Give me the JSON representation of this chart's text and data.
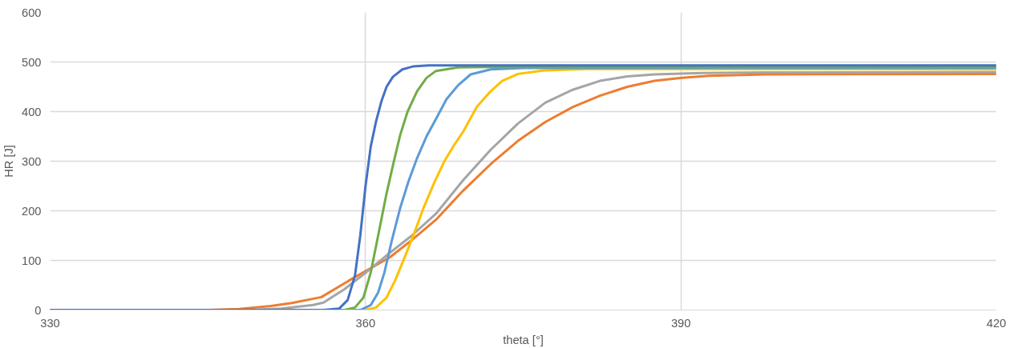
{
  "chart_data": {
    "type": "line",
    "xlabel": "theta [°]",
    "ylabel": "HR [J]",
    "xlim": [
      330,
      420
    ],
    "xticks": [
      330,
      360,
      390,
      420
    ],
    "ylim": [
      0,
      600
    ],
    "yticks": [
      0,
      100,
      200,
      300,
      400,
      500,
      600
    ],
    "grid": true,
    "series": [
      {
        "color": "#ed7d31",
        "x": [
          330,
          345,
          348,
          351,
          353,
          355.8,
          358.4,
          362.3,
          364.4,
          366.7,
          369.3,
          371.9,
          374.5,
          377.1,
          379.7,
          382.3,
          384.9,
          387.5,
          390.1,
          392.7,
          398,
          420
        ],
        "values": [
          0,
          0,
          2,
          8,
          14,
          26,
          59,
          106,
          141,
          182,
          241,
          294,
          341,
          379,
          409,
          432,
          450,
          462,
          468,
          472,
          475,
          476
        ]
      },
      {
        "color": "#a5a5a5",
        "x": [
          330,
          349,
          352,
          355,
          356,
          358,
          360,
          362.3,
          364.4,
          366.7,
          369.3,
          371.9,
          374.5,
          377.1,
          379.7,
          382.3,
          384.9,
          387.5,
          392,
          398,
          420
        ],
        "values": [
          0,
          0,
          3,
          10,
          15,
          42,
          75,
          115,
          150,
          194,
          262,
          323,
          376,
          418,
          444,
          462,
          471,
          475,
          478,
          479,
          480
        ]
      },
      {
        "color": "#ffc000",
        "x": [
          330,
          360,
          361,
          362,
          362.8,
          363.7,
          364.6,
          365.5,
          366.5,
          367.5,
          368.5,
          369.3,
          370.6,
          371.9,
          373,
          374.5,
          377,
          381,
          420
        ],
        "values": [
          0,
          0,
          5,
          25,
          59,
          105,
          153,
          205,
          255,
          300,
          335,
          360,
          410,
          441,
          462,
          476,
          483,
          486,
          486
        ]
      },
      {
        "color": "#5b9bd5",
        "x": [
          330,
          359.5,
          360.5,
          361.2,
          361.8,
          362.5,
          363.3,
          364.1,
          364.9,
          365.8,
          366.7,
          367.7,
          368.8,
          370,
          371.9,
          375,
          420
        ],
        "values": [
          0,
          0,
          10,
          35,
          76,
          140,
          206,
          260,
          306,
          350,
          385,
          425,
          453,
          475,
          485,
          488,
          488
        ]
      },
      {
        "color": "#70ad47",
        "x": [
          330,
          358,
          359,
          359.8,
          360.5,
          361.2,
          362,
          362.7,
          363.3,
          364,
          364.9,
          365.8,
          366.7,
          368.8,
          372,
          420
        ],
        "values": [
          0,
          0,
          5,
          25,
          76,
          150,
          235,
          300,
          353,
          400,
          441,
          468,
          482,
          489,
          490,
          490
        ]
      },
      {
        "color": "#4472c4",
        "x": [
          330,
          356,
          357.5,
          358.3,
          359,
          359.5,
          360,
          360.5,
          361,
          361.5,
          362,
          362.6,
          363.5,
          364.5,
          366,
          420
        ],
        "values": [
          0,
          0,
          3,
          20,
          70,
          150,
          250,
          330,
          380,
          420,
          450,
          470,
          485,
          491,
          493,
          493
        ]
      }
    ]
  }
}
